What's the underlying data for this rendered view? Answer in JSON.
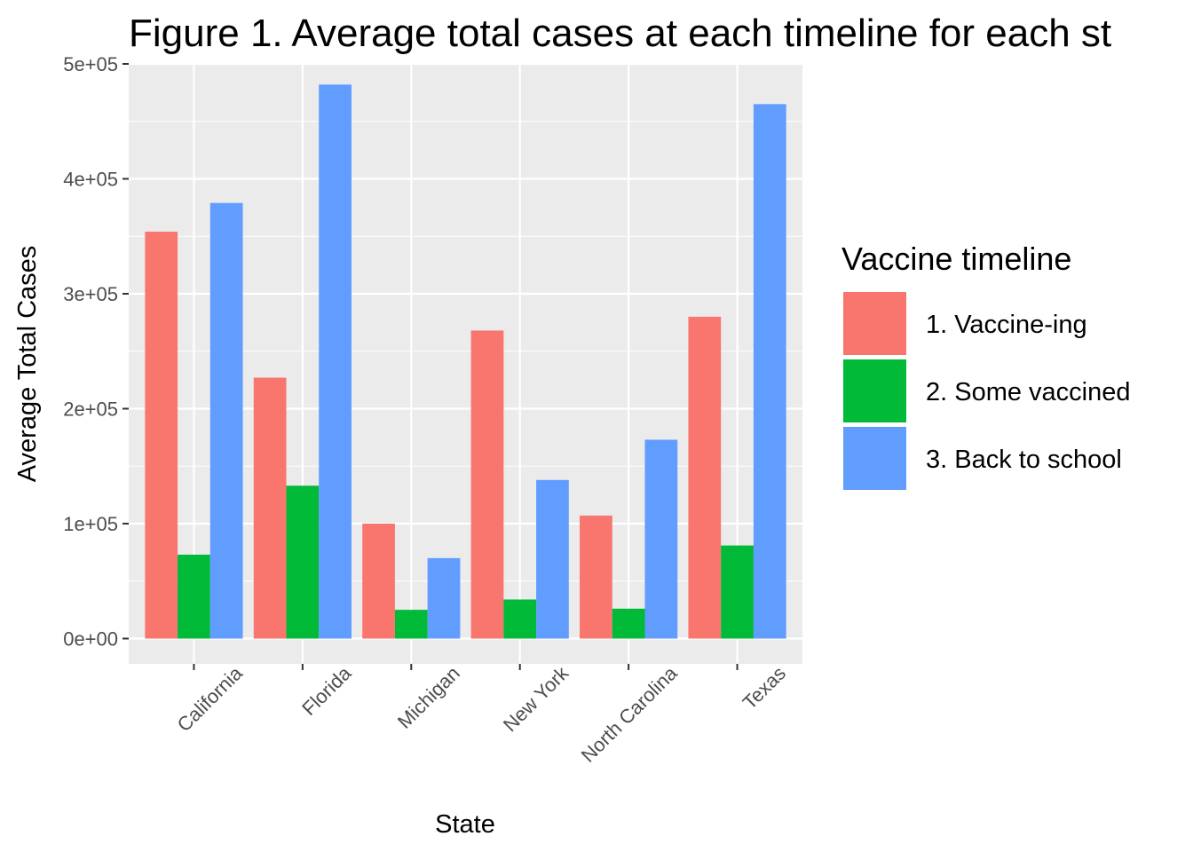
{
  "chart_data": {
    "type": "bar",
    "title": "Figure 1. Average total cases at each timeline for each st",
    "xlabel": "State",
    "ylabel": "Average Total Cases",
    "categories": [
      "California",
      "Florida",
      "Michigan",
      "New York",
      "North Carolina",
      "Texas"
    ],
    "series": [
      {
        "name": "1. Vaccine-ing",
        "color": "#F8766D",
        "values": [
          354000,
          227000,
          100000,
          268000,
          107000,
          280000
        ]
      },
      {
        "name": "2. Some vaccined",
        "color": "#00BA38",
        "values": [
          73000,
          133000,
          25000,
          34000,
          26000,
          81000
        ]
      },
      {
        "name": "3. Back to school",
        "color": "#619CFF",
        "values": [
          379000,
          482000,
          70000,
          138000,
          173000,
          465000
        ]
      }
    ],
    "ylim": [
      -22000,
      500000
    ],
    "yticks": [
      0,
      100000,
      200000,
      300000,
      400000,
      500000
    ],
    "ytick_labels": [
      "0e+00",
      "1e+05",
      "2e+05",
      "3e+05",
      "4e+05",
      "5e+05"
    ],
    "legend_title": "Vaccine timeline",
    "legend_position": "right",
    "grid": true,
    "panel_background": "#EBEBEB"
  }
}
